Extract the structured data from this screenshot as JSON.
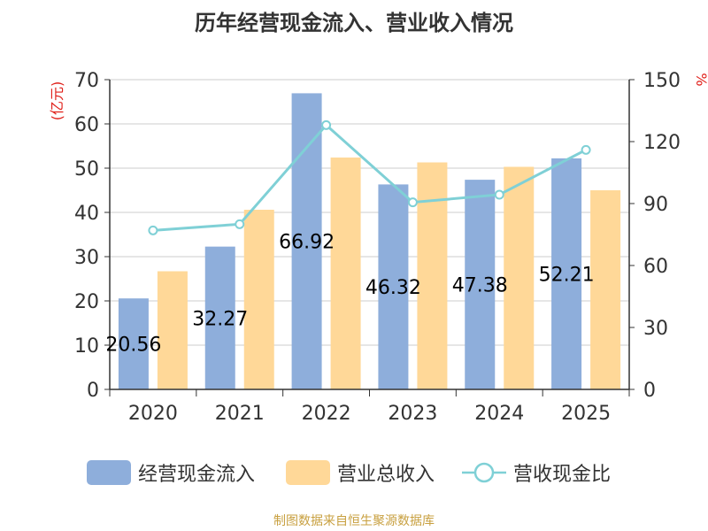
{
  "chart_data": {
    "type": "bar",
    "title": "历年经营现金流入、营业收入情况",
    "categories": [
      "2020",
      "2021",
      "2022",
      "2023",
      "2024",
      "2025"
    ],
    "series": [
      {
        "name": "经营现金流入",
        "type": "bar",
        "axis": "left",
        "color": "#8eaedb",
        "values": [
          20.56,
          32.27,
          66.92,
          46.32,
          47.38,
          52.21
        ],
        "labels": [
          "20.56",
          "32.27",
          "66.92",
          "46.32",
          "47.38",
          "52.21"
        ]
      },
      {
        "name": "营业总收入",
        "type": "bar",
        "axis": "left",
        "color": "#ffd898",
        "values": [
          26.7,
          40.6,
          52.4,
          51.3,
          50.3,
          45.0
        ]
      },
      {
        "name": "营收现金比",
        "type": "line",
        "axis": "right",
        "color": "#7fd0d6",
        "values": [
          77,
          80,
          128,
          90.6,
          94.3,
          116
        ]
      }
    ],
    "ylabel_left": "(亿元)",
    "ylabel_right": "%",
    "ylim_left": [
      0,
      70
    ],
    "ylim_right": [
      0,
      150
    ],
    "yticks_left": [
      0,
      10,
      20,
      30,
      40,
      50,
      60,
      70
    ],
    "yticks_right": [
      0,
      30,
      60,
      90,
      120,
      150
    ],
    "grid": true,
    "legend_position": "bottom"
  },
  "source_note": "制图数据来自恒生聚源数据库",
  "colors": {
    "axis_label": "#e0201a",
    "axis": "#333333",
    "grid": "#cccccc"
  }
}
